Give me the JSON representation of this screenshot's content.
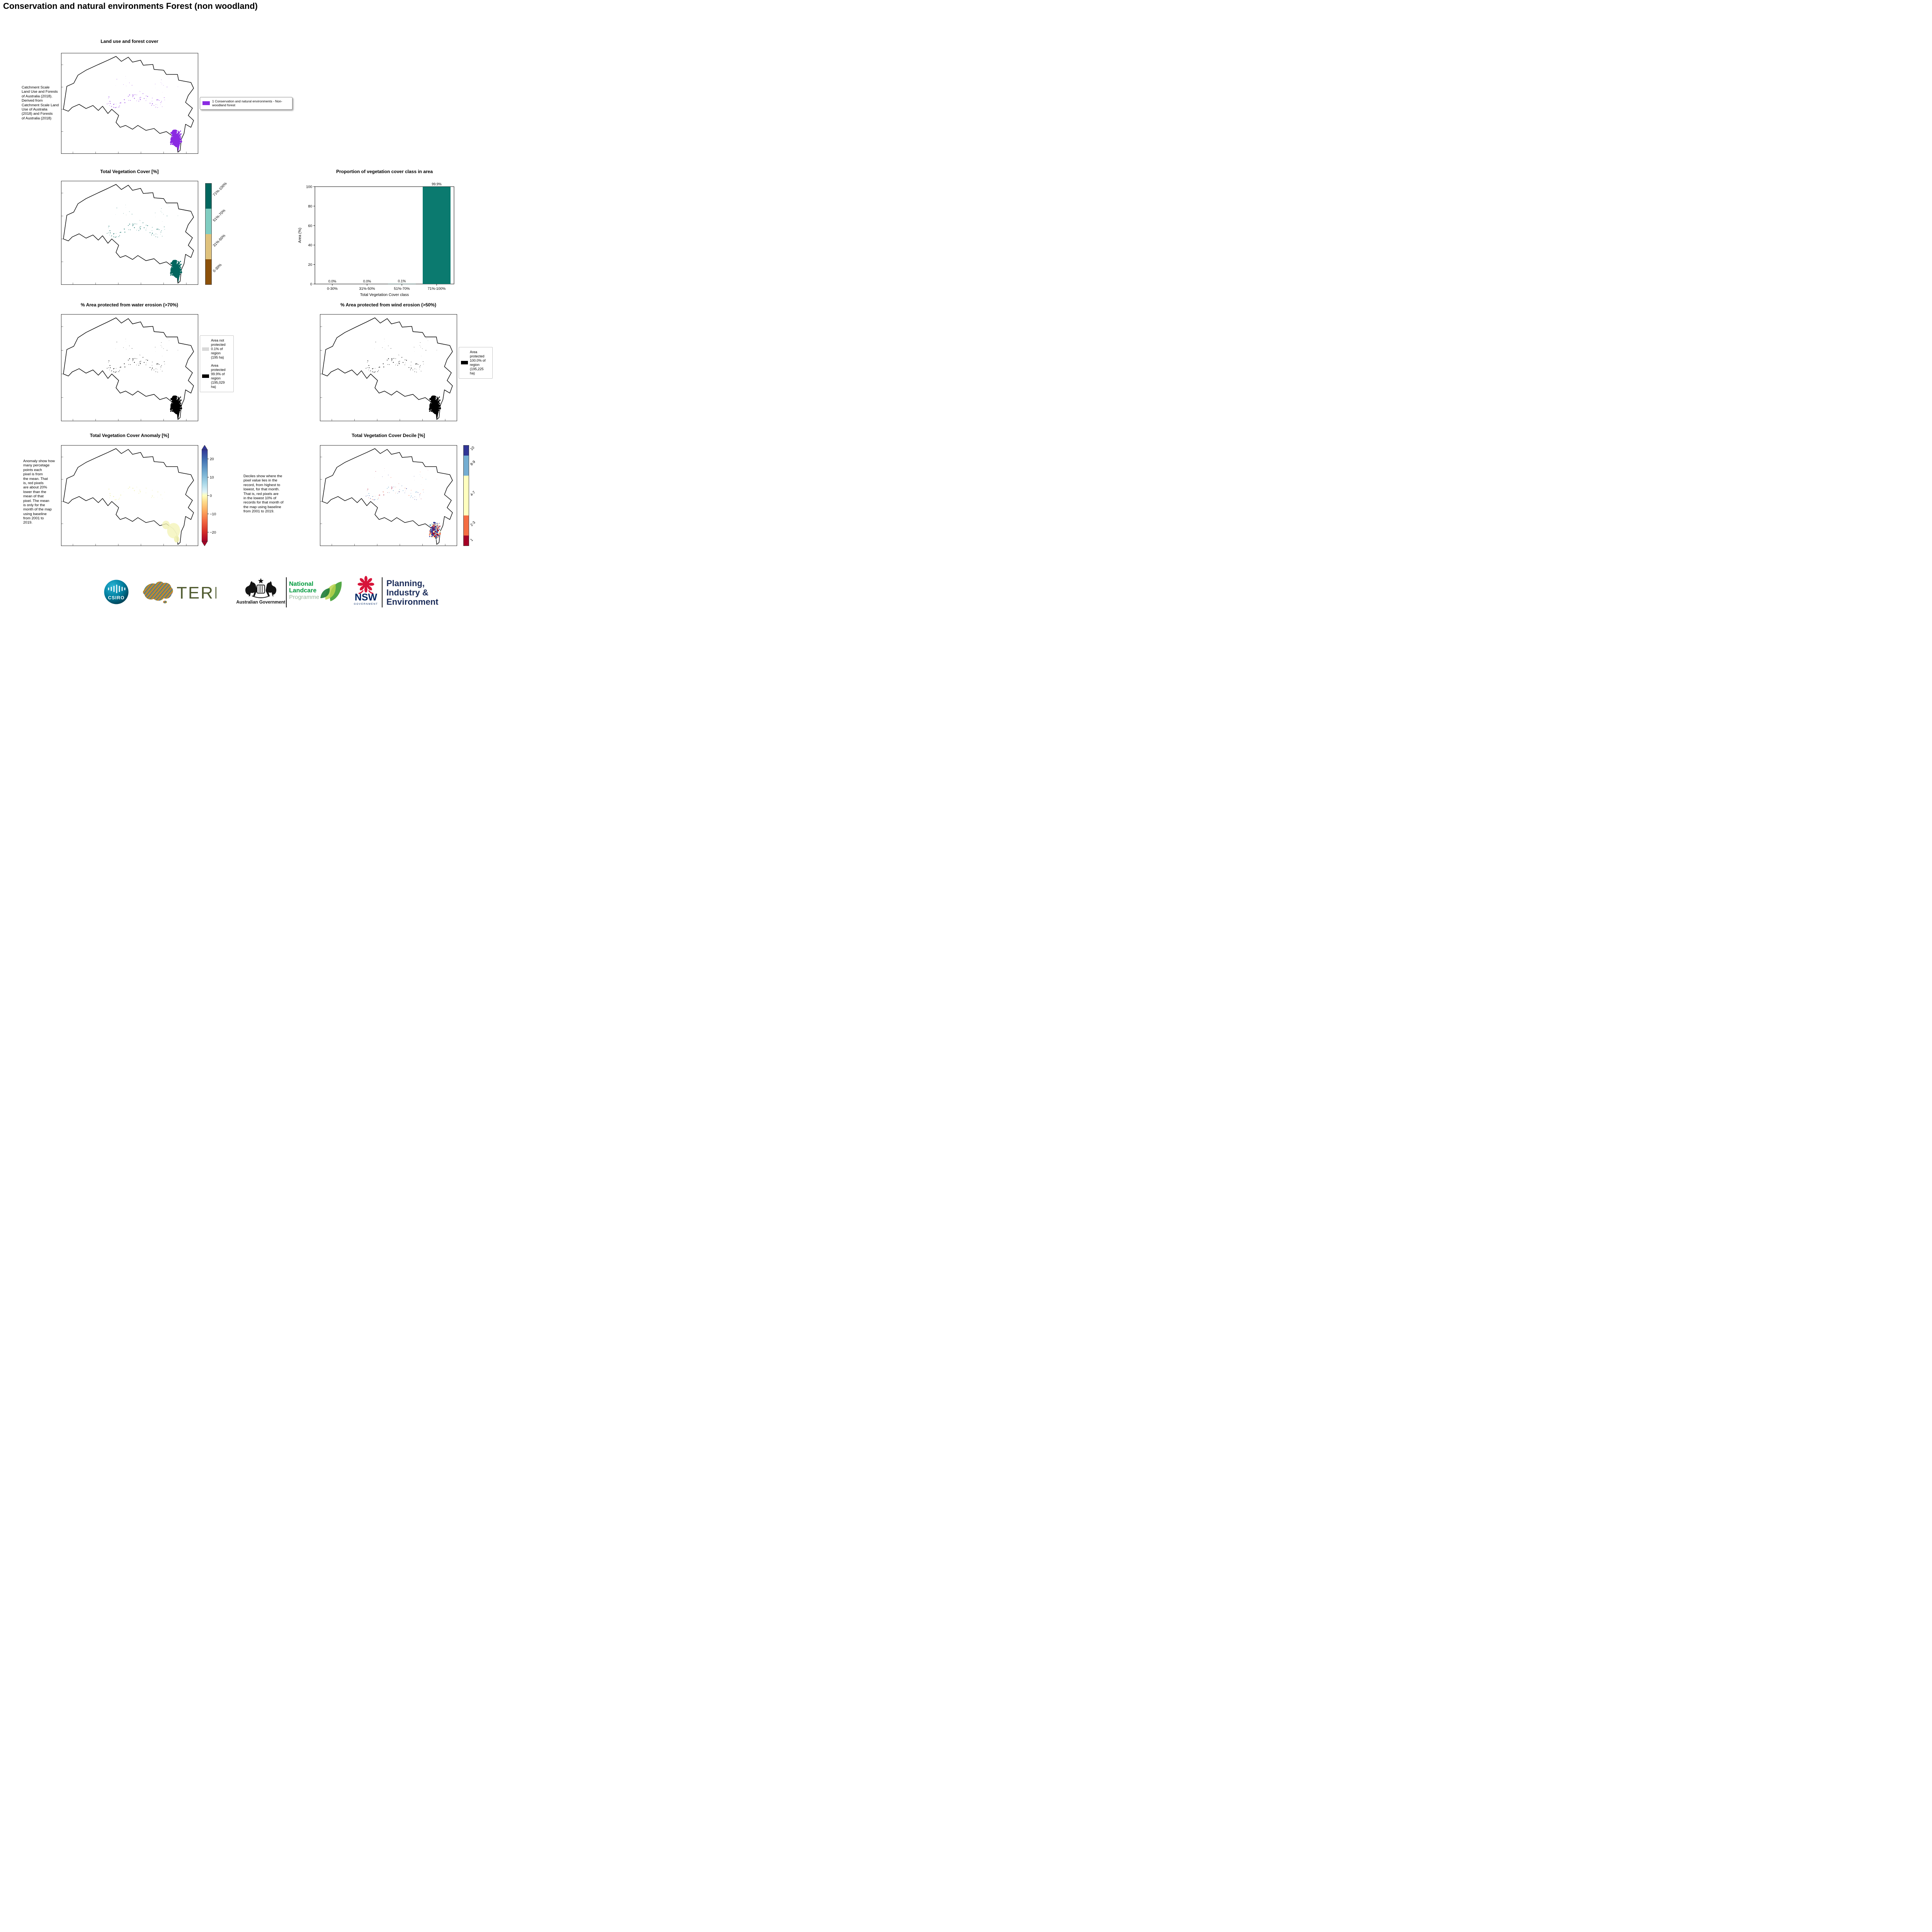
{
  "page": {
    "title": "Conservation and natural environments Forest (non woodland)"
  },
  "panels": {
    "landuse": {
      "title": "Land use and forest cover",
      "caption": "Catchment Scale\nLand Use and Forests\nof Australia (2018).\nDerived from\nCatchment Scale Land\nUse of Australia\n(2018) and Forests\nof Australia (2018)",
      "legend": {
        "swatch_color": "#8a2be2",
        "label": "1 Conservation and natural environments - Non-woodland forest"
      }
    },
    "tvc": {
      "title": "Total Vegetation Cover [%]",
      "colorbar": [
        {
          "label": "71%-100%",
          "color": "#01665e"
        },
        {
          "label": "51%-70%",
          "color": "#80cdc1"
        },
        {
          "label": "31%-50%",
          "color": "#dfc27d"
        },
        {
          "label": "0-30%",
          "color": "#8c510a"
        }
      ]
    },
    "proportion": {
      "title": "Proportion of vegetation cover class in area"
    },
    "water": {
      "title": "% Area protected from water erosion (>70%)",
      "legend": [
        {
          "label": "Area not\nprotected\n0.1% of\nregion\n(195 ha)",
          "color": "#d9d9d9"
        },
        {
          "label": "Area\nprotected\n99.9% of\nregion\n(195,029\nha)",
          "color": "#000000"
        }
      ]
    },
    "wind": {
      "title": "% Area protected from wind erosion (>50%)",
      "legend": [
        {
          "label": "Area\nprotected\n100.0% of\nregion\n(195,225\nha)",
          "color": "#000000"
        }
      ]
    },
    "anomaly": {
      "title": "Total Vegetation Cover Anomaly [%]",
      "caption": "Anomaly show how\nmany percetage\npoints each\npixel is from\nthe mean. That\nis, red pixels\nare about 20%\nlower than the\nmean of that\npixel. The mean\nis only for the\nmonth of the map\nusing baseline\nfrom 2001 to\n2019.",
      "colorbar_ticks": [
        20,
        10,
        0,
        -10,
        -20
      ]
    },
    "decile": {
      "title": "Total Vegetation Cover Decile [%]",
      "caption": "Deciles show where the\npixel value lies in the\nrecord, from highest to\nlowest, for that month.\nThat is, red pixels are\nin the lowest 10% of\nrecords for that month of\nthe map using baseline\nfrom 2001 to 2019.",
      "colorbar": [
        {
          "label": "10",
          "color": "#313695",
          "fraction": 0.1
        },
        {
          "label": "8-9",
          "color": "#74add1",
          "fraction": 0.2
        },
        {
          "label": "4-7",
          "color": "#ffffbf",
          "fraction": 0.4
        },
        {
          "label": "2-3",
          "color": "#f46d43",
          "fraction": 0.2
        },
        {
          "label": "1",
          "color": "#a50026",
          "fraction": 0.1
        }
      ]
    }
  },
  "chart_data": {
    "type": "bar",
    "title": "Proportion of vegetation cover class in area",
    "categories": [
      "0-30%",
      "31%-50%",
      "51%-70%",
      "71%-100%"
    ],
    "values": [
      0.0,
      0.0,
      0.1,
      99.9
    ],
    "value_labels": [
      "0.0%",
      "0.0%",
      "0.1%",
      "99.9%"
    ],
    "xlabel": "Total Vegetation Cover class",
    "ylabel": "Area (%)",
    "ylim": [
      0,
      100
    ],
    "yticks": [
      0,
      20,
      40,
      60,
      80,
      100
    ],
    "bar_color": "#0b7a6f",
    "legend": "none",
    "grid": false
  },
  "footer": {
    "csiro": {
      "label": "CSIRO"
    },
    "tern": {
      "label": "TERN"
    },
    "aus_gov": {
      "label": "Australian Government"
    },
    "landcare": {
      "line1": "National",
      "line2": "Landcare",
      "line3": "Programme"
    },
    "nsw": {
      "label": "NSW",
      "sub": "GOVERNMENT"
    },
    "planning": {
      "line1": "Planning,",
      "line2": "Industry &",
      "line3": "Environment"
    }
  }
}
